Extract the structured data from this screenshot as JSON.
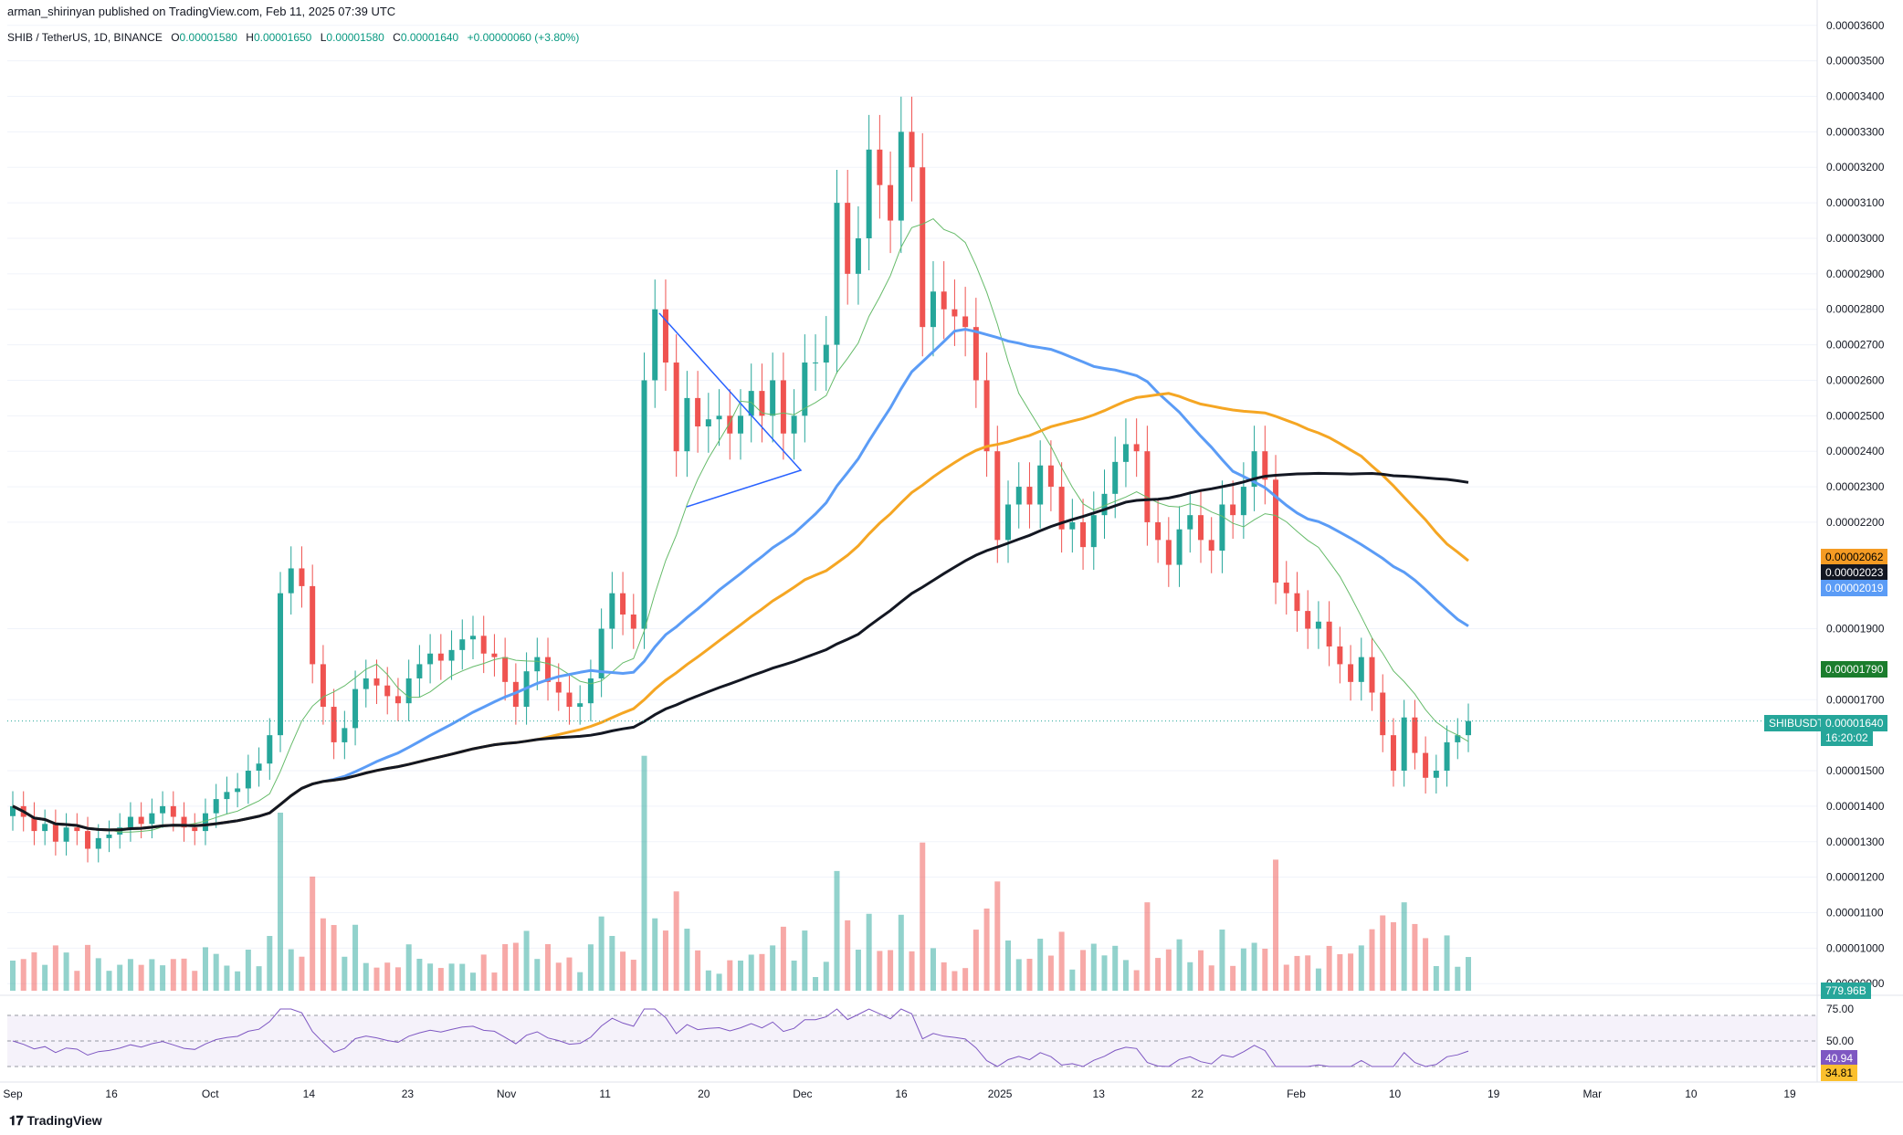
{
  "publisher": "arman_shirinyan published on TradingView.com, Feb 11, 2025 07:39 UTC",
  "legend": {
    "symbol": "SHIB / TetherUS, 1D, BINANCE",
    "open_label": "O",
    "open": "0.00001580",
    "high_label": "H",
    "high": "0.00001650",
    "low_label": "L",
    "low": "0.00001580",
    "close_label": "C",
    "close": "0.00001640",
    "change": "+0.00000060 (+3.80%)"
  },
  "brand": "TradingView",
  "colors": {
    "up": "#26a69a",
    "down": "#ef5350",
    "ma_blue": "#5b9cf6",
    "ma_orange": "#f5a623",
    "ma_black": "#131722",
    "ma_green": "#66bb6a",
    "rsi": "#7e57c2",
    "rsi_ma": "#fbc02d"
  },
  "price_tags": {
    "orange": "0.00002062",
    "black": "0.00002023",
    "blue": "0.00002019",
    "green": "0.00001790",
    "symbol": "SHIBUSDT",
    "last": "0.00001640",
    "countdown": "16:20:02",
    "volume": "779.96B"
  },
  "rsi_tags": {
    "rsi": "40.94",
    "ma": "34.81"
  },
  "y_axis_labels": [
    "0.00003600",
    "0.00003500",
    "0.00003400",
    "0.00003300",
    "0.00003200",
    "0.00003100",
    "0.00003000",
    "0.00002900",
    "0.00002800",
    "0.00002700",
    "0.00002600",
    "0.00002500",
    "0.00002400",
    "0.00002300",
    "0.00002200",
    "0.00001900",
    "0.00001700",
    "0.00001500",
    "0.00001400",
    "0.00001300",
    "0.00001200",
    "0.00001100",
    "0.00001000",
    "0.00000900"
  ],
  "rsi_axis_labels": [
    "75.00",
    "50.00"
  ],
  "x_axis_labels": [
    "Sep",
    "16",
    "Oct",
    "14",
    "23",
    "Nov",
    "11",
    "20",
    "Dec",
    "16",
    "2025",
    "13",
    "22",
    "Feb",
    "10",
    "19",
    "Mar",
    "10",
    "19"
  ],
  "chart_data": {
    "type": "candlestick",
    "symbol": "SHIB / TetherUS",
    "interval": "1D",
    "exchange": "BINANCE",
    "y_unit": "USDT",
    "ylim": [
      8.8e-06,
      3.62e-05
    ],
    "rsi_ylim": [
      25,
      80
    ],
    "x_ticks": [
      "Sep",
      "16",
      "Oct",
      "14",
      "23",
      "Nov",
      "11",
      "20",
      "Dec",
      "16",
      "2025",
      "13",
      "22",
      "Feb",
      "10",
      "19",
      "Mar",
      "10",
      "19"
    ],
    "candles_daily_close_approx": [
      1.4e-05,
      1.37e-05,
      1.33e-05,
      1.35e-05,
      1.3e-05,
      1.34e-05,
      1.33e-05,
      1.28e-05,
      1.31e-05,
      1.32e-05,
      1.34e-05,
      1.37e-05,
      1.35e-05,
      1.38e-05,
      1.4e-05,
      1.37e-05,
      1.34e-05,
      1.33e-05,
      1.38e-05,
      1.42e-05,
      1.44e-05,
      1.45e-05,
      1.5e-05,
      1.52e-05,
      1.6e-05,
      2e-05,
      2.07e-05,
      2.02e-05,
      1.8e-05,
      1.68e-05,
      1.58e-05,
      1.62e-05,
      1.73e-05,
      1.76e-05,
      1.74e-05,
      1.71e-05,
      1.69e-05,
      1.76e-05,
      1.8e-05,
      1.83e-05,
      1.81e-05,
      1.84e-05,
      1.87e-05,
      1.88e-05,
      1.83e-05,
      1.82e-05,
      1.75e-05,
      1.68e-05,
      1.78e-05,
      1.82e-05,
      1.75e-05,
      1.72e-05,
      1.68e-05,
      1.69e-05,
      1.76e-05,
      1.9e-05,
      2e-05,
      1.94e-05,
      1.9e-05,
      2.6e-05,
      2.8e-05,
      2.65e-05,
      2.4e-05,
      2.55e-05,
      2.47e-05,
      2.49e-05,
      2.5e-05,
      2.45e-05,
      2.5e-05,
      2.57e-05,
      2.5e-05,
      2.6e-05,
      2.45e-05,
      2.5e-05,
      2.65e-05,
      2.65e-05,
      2.7e-05,
      3.1e-05,
      2.9e-05,
      3e-05,
      3.25e-05,
      3.15e-05,
      3.05e-05,
      3.3e-05,
      3.2e-05,
      2.75e-05,
      2.85e-05,
      2.8e-05,
      2.78e-05,
      2.75e-05,
      2.6e-05,
      2.4e-05,
      2.15e-05,
      2.25e-05,
      2.3e-05,
      2.25e-05,
      2.36e-05,
      2.3e-05,
      2.18e-05,
      2.2e-05,
      2.13e-05,
      2.22e-05,
      2.28e-05,
      2.37e-05,
      2.42e-05,
      2.4e-05,
      2.2e-05,
      2.15e-05,
      2.08e-05,
      2.18e-05,
      2.22e-05,
      2.15e-05,
      2.12e-05,
      2.25e-05,
      2.22e-05,
      2.3e-05,
      2.4e-05,
      2.32e-05,
      2.03e-05,
      2e-05,
      1.95e-05,
      1.9e-05,
      1.92e-05,
      1.85e-05,
      1.8e-05,
      1.75e-05,
      1.82e-05,
      1.72e-05,
      1.6e-05,
      1.5e-05,
      1.65e-05,
      1.55e-05,
      1.48e-05,
      1.5e-05,
      1.58e-05,
      1.6e-05,
      1.64e-05
    ],
    "moving_averages": [
      {
        "color": "blue",
        "last_value": 2.019e-05
      },
      {
        "color": "orange",
        "last_value": 2.062e-05
      },
      {
        "color": "black",
        "last_value": 2.023e-05
      },
      {
        "color": "green",
        "last_value": 1.79e-05
      }
    ],
    "last_price": 1.64e-05,
    "volume_last": "779.96B",
    "rsi_last": 40.94,
    "rsi_ma_last": 34.81,
    "rsi_levels": [
      70,
      50,
      30
    ],
    "grid": true,
    "legend_position": "top-left"
  }
}
